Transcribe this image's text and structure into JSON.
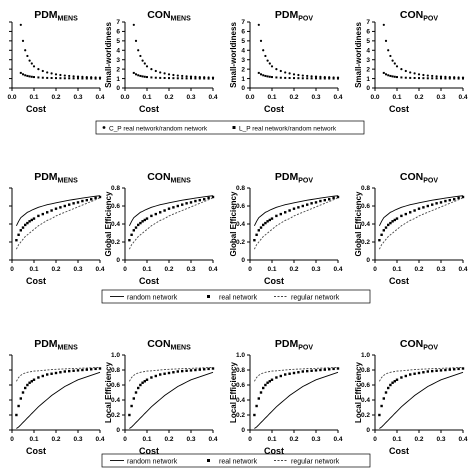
{
  "figure": {
    "rows": [
      {
        "ylabel": "Small-worldiness",
        "xlabel": "Cost",
        "xlim": [
          0,
          0.4
        ],
        "ylim": [
          0,
          7
        ],
        "xticks": [
          "0.0",
          "0.1",
          "0.2",
          "0.3",
          "0.4"
        ],
        "yticks": [
          "0",
          "1",
          "2",
          "3",
          "4",
          "5",
          "6",
          "7"
        ],
        "legend": [
          {
            "marker": "•",
            "label": "C_P real network/random network"
          },
          {
            "marker": "▪",
            "label": "L_P real network/random network"
          }
        ]
      },
      {
        "ylabel": "Global Efficiency",
        "xlabel": "Cost",
        "xlim": [
          0,
          0.4
        ],
        "ylim": [
          0,
          0.8
        ],
        "xticks": [
          "0",
          "0.1",
          "0.2",
          "0.3",
          "0.4"
        ],
        "yticks": [
          "0",
          "0.2",
          "0.4",
          "0.6",
          "0.8"
        ],
        "legend": [
          {
            "marker": "—",
            "label": "random network"
          },
          {
            "marker": "▪",
            "label": "real network"
          },
          {
            "marker": "- - -",
            "label": "regular network"
          }
        ]
      },
      {
        "ylabel": "Local Efficiency",
        "xlabel": "Cost",
        "xlim": [
          0,
          0.4
        ],
        "ylim": [
          0,
          1.0
        ],
        "xticks": [
          "0",
          "0.1",
          "0.2",
          "0.3",
          "0.4"
        ],
        "yticks": [
          "0",
          "0.2",
          "0.4",
          "0.6",
          "0.8",
          "1.0"
        ],
        "legend": [
          {
            "marker": "—",
            "label": "random network"
          },
          {
            "marker": "▪",
            "label": "real network"
          },
          {
            "marker": "- - -",
            "label": "regular network"
          }
        ]
      }
    ],
    "columns": [
      {
        "title": "PDM",
        "subscript": "MENS"
      },
      {
        "title": "CON",
        "subscript": "MENS"
      },
      {
        "title": "PDM",
        "subscript": "POV"
      },
      {
        "title": "CON",
        "subscript": "POV"
      }
    ]
  },
  "chart_data": [
    {
      "type": "scatter",
      "xlabel": "Cost",
      "ylabel": "Small-worldiness",
      "x": [
        0.04,
        0.05,
        0.06,
        0.07,
        0.08,
        0.09,
        0.1,
        0.12,
        0.14,
        0.16,
        0.18,
        0.2,
        0.22,
        0.24,
        0.26,
        0.28,
        0.3,
        0.32,
        0.34,
        0.36,
        0.38,
        0.4
      ],
      "series": [
        {
          "label": "C_P real network/random network",
          "values": [
            6.7,
            5.0,
            4.0,
            3.4,
            2.9,
            2.6,
            2.3,
            2.0,
            1.8,
            1.65,
            1.55,
            1.45,
            1.38,
            1.32,
            1.28,
            1.24,
            1.21,
            1.18,
            1.16,
            1.14,
            1.12,
            1.1
          ]
        },
        {
          "label": "L_P real network/random network",
          "values": [
            1.6,
            1.45,
            1.35,
            1.28,
            1.23,
            1.19,
            1.16,
            1.12,
            1.09,
            1.07,
            1.06,
            1.05,
            1.04,
            1.03,
            1.03,
            1.02,
            1.02,
            1.01,
            1.01,
            1.01,
            1.0,
            1.0
          ]
        }
      ]
    },
    {
      "type": "line",
      "xlabel": "Cost",
      "ylabel": "Global Efficiency",
      "x": [
        0.02,
        0.03,
        0.04,
        0.05,
        0.06,
        0.07,
        0.08,
        0.09,
        0.1,
        0.12,
        0.14,
        0.16,
        0.18,
        0.2,
        0.22,
        0.24,
        0.26,
        0.28,
        0.3,
        0.32,
        0.34,
        0.36,
        0.38,
        0.4
      ],
      "series": [
        {
          "label": "random network",
          "values": [
            0.38,
            0.43,
            0.47,
            0.49,
            0.51,
            0.53,
            0.54,
            0.555,
            0.565,
            0.585,
            0.6,
            0.615,
            0.625,
            0.635,
            0.645,
            0.655,
            0.665,
            0.672,
            0.68,
            0.688,
            0.695,
            0.702,
            0.709,
            0.715
          ]
        },
        {
          "label": "real network",
          "values": [
            0.22,
            0.28,
            0.33,
            0.36,
            0.39,
            0.41,
            0.43,
            0.445,
            0.46,
            0.49,
            0.51,
            0.53,
            0.55,
            0.57,
            0.585,
            0.6,
            0.615,
            0.63,
            0.64,
            0.655,
            0.665,
            0.675,
            0.69,
            0.7
          ]
        },
        {
          "label": "regular network",
          "values": [
            0.12,
            0.17,
            0.2,
            0.23,
            0.26,
            0.28,
            0.3,
            0.32,
            0.34,
            0.38,
            0.41,
            0.44,
            0.46,
            0.49,
            0.51,
            0.53,
            0.55,
            0.57,
            0.59,
            0.61,
            0.63,
            0.65,
            0.67,
            0.69
          ]
        }
      ]
    },
    {
      "type": "line",
      "xlabel": "Cost",
      "ylabel": "Local Efficiency",
      "x": [
        0.02,
        0.03,
        0.04,
        0.05,
        0.06,
        0.07,
        0.08,
        0.09,
        0.1,
        0.12,
        0.14,
        0.16,
        0.18,
        0.2,
        0.22,
        0.24,
        0.26,
        0.28,
        0.3,
        0.32,
        0.34,
        0.36,
        0.38,
        0.4
      ],
      "series": [
        {
          "label": "random network",
          "values": [
            0.02,
            0.04,
            0.07,
            0.1,
            0.13,
            0.16,
            0.19,
            0.22,
            0.25,
            0.31,
            0.36,
            0.41,
            0.46,
            0.5,
            0.54,
            0.58,
            0.61,
            0.64,
            0.67,
            0.69,
            0.71,
            0.73,
            0.75,
            0.77
          ]
        },
        {
          "label": "real network",
          "values": [
            0.2,
            0.32,
            0.42,
            0.5,
            0.56,
            0.6,
            0.63,
            0.65,
            0.67,
            0.7,
            0.72,
            0.74,
            0.75,
            0.76,
            0.77,
            0.78,
            0.785,
            0.79,
            0.795,
            0.8,
            0.805,
            0.81,
            0.815,
            0.82
          ]
        },
        {
          "label": "regular network",
          "values": [
            0.65,
            0.7,
            0.73,
            0.75,
            0.76,
            0.77,
            0.775,
            0.78,
            0.785,
            0.79,
            0.795,
            0.8,
            0.805,
            0.81,
            0.812,
            0.815,
            0.818,
            0.82,
            0.822,
            0.825,
            0.827,
            0.83,
            0.832,
            0.835
          ]
        }
      ]
    }
  ]
}
